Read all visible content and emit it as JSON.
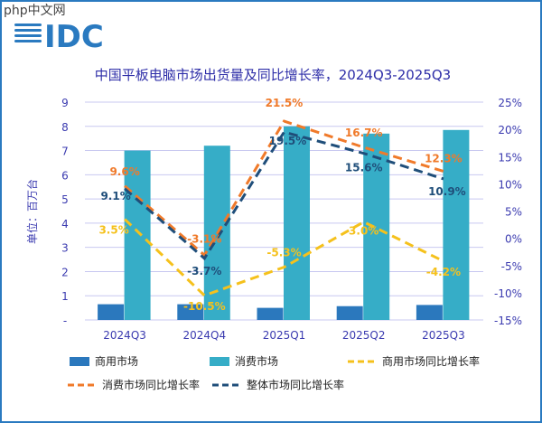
{
  "watermark": "php中文网",
  "logo": "IDC",
  "colors": {
    "commercial": "#2b78bd",
    "consumer": "#36adc7",
    "commercial_yoy": "#f5c11c",
    "consumer_yoy": "#f07a2a",
    "overall_yoy": "#1f4e7a",
    "axis_text": "#3b3bb0",
    "grid": "#c8c8f0"
  },
  "chart_data": {
    "type": "bar",
    "title": "中国平板电脑市场出货量及同比增长率，2024Q3-2025Q3",
    "ylabel": "单位：百万台",
    "categories": [
      "2024Q3",
      "2024Q4",
      "2025Q1",
      "2025Q2",
      "2025Q3"
    ],
    "ylim": [
      0,
      9
    ],
    "yticks": [
      "-",
      "1",
      "2",
      "3",
      "4",
      "5",
      "6",
      "7",
      "8",
      "9"
    ],
    "y2lim": [
      -15,
      25
    ],
    "y2ticks": [
      "-15%",
      "-10%",
      "-5%",
      "0%",
      "5%",
      "10%",
      "15%",
      "20%",
      "25%"
    ],
    "grid": true,
    "legend_position": "bottom",
    "bar_series": [
      {
        "name": "商用市场",
        "values": [
          0.65,
          0.65,
          0.5,
          0.57,
          0.62
        ]
      },
      {
        "name": "消费市场",
        "values": [
          7.0,
          7.2,
          8.0,
          7.7,
          7.85
        ]
      }
    ],
    "line_series": [
      {
        "name": "商用市场同比增长率",
        "values": [
          3.5,
          -10.5,
          -5.3,
          3.0,
          -4.2
        ],
        "labels": [
          "3.5%",
          "-10.5%",
          "-5.3%",
          "3.0%",
          "-4.2%"
        ]
      },
      {
        "name": "消费市场同比增长率",
        "values": [
          9.6,
          -3.1,
          21.5,
          16.7,
          12.3
        ],
        "labels": [
          "9.6%",
          "-3.1%",
          "21.5%",
          "16.7%",
          "12.3%"
        ]
      },
      {
        "name": "整体市场同比增长率",
        "values": [
          9.1,
          -3.7,
          19.5,
          15.6,
          10.9
        ],
        "labels": [
          "9.1%",
          "-3.7%",
          "19.5%",
          "15.6%",
          "10.9%"
        ]
      }
    ]
  }
}
